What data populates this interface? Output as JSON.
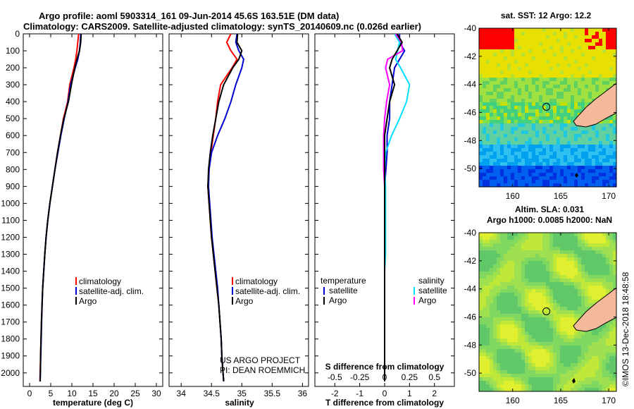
{
  "title_line1": "Argo profile: aoml 5903314_161 09-Jun-2014 45.6S 163.51E (DM data)",
  "title_line2": "Climatology: CARS2009. Satellite-adjusted climatology: synTS_20140609.nc (0.026d earlier)",
  "credit_line1": "US ARGO PROJECT",
  "credit_line2": "PI: DEAN ROEMMICH",
  "timestamp": "©IMOS 13-Dec-2018 18:48:58",
  "colors": {
    "climatology": "#ff0000",
    "satellite": "#0000d0",
    "argo": "#000000",
    "salinity_satellite": "#00e0ff",
    "salinity_argo": "#ff00ff",
    "land": "#f4b89a"
  },
  "depth_axis": {
    "ylim": [
      2080,
      0
    ],
    "ticks": [
      "0",
      "100",
      "200",
      "300",
      "400",
      "500",
      "600",
      "700",
      "800",
      "900",
      "1000",
      "1100",
      "1200",
      "1300",
      "1400",
      "1500",
      "1600",
      "1700",
      "1800",
      "1900",
      "2000"
    ]
  },
  "chart_data": [
    {
      "type": "line",
      "panel": "temperature",
      "xlabel": "temperature (deg C)",
      "xlim": [
        -1.5,
        31.5
      ],
      "xticks": [
        "0",
        "5",
        "10",
        "15",
        "20",
        "25",
        "30"
      ],
      "legend": [
        "climatology",
        "satellite-adj. clim.",
        "Argo"
      ],
      "depth": [
        0,
        50,
        100,
        150,
        200,
        300,
        400,
        500,
        600,
        700,
        800,
        900,
        1000,
        1100,
        1200,
        1300,
        1400,
        1500,
        1600,
        1700,
        1800,
        1900,
        2000,
        2050
      ],
      "series": [
        {
          "name": "climatology",
          "values": [
            11.6,
            11.4,
            11.2,
            10.9,
            10.5,
            9.5,
            9.0,
            8.0,
            7.3,
            6.6,
            6.0,
            5.4,
            4.8,
            4.3,
            3.9,
            3.6,
            3.35,
            3.1,
            2.95,
            2.8,
            2.7,
            2.6,
            2.5,
            2.45
          ]
        },
        {
          "name": "satellite-adj. clim.",
          "values": [
            12.1,
            12.0,
            11.8,
            11.4,
            10.8,
            9.7,
            9.1,
            8.2,
            7.4,
            6.7,
            6.0,
            5.4,
            4.8,
            4.3,
            3.9,
            3.6,
            3.35,
            3.1,
            2.95,
            2.85,
            2.75,
            2.65,
            2.55,
            2.5
          ]
        },
        {
          "name": "Argo",
          "values": [
            12.2,
            12.1,
            11.8,
            11.2,
            10.7,
            9.9,
            9.2,
            8.1,
            7.3,
            6.6,
            6.0,
            5.4,
            4.8,
            4.3,
            3.9,
            3.6,
            3.35,
            3.1,
            2.95,
            2.8,
            2.7,
            2.6,
            2.55,
            2.5
          ]
        }
      ]
    },
    {
      "type": "line",
      "panel": "salinity",
      "xlabel": "salinity",
      "xlim": [
        33.8,
        36.1
      ],
      "xticks": [
        "34",
        "34.5",
        "35",
        "35.5",
        "36"
      ],
      "legend": [
        "climatology",
        "satellite-adj. clim.",
        "Argo"
      ],
      "depth": [
        0,
        50,
        100,
        150,
        200,
        300,
        400,
        500,
        600,
        700,
        800,
        900,
        1000,
        1100,
        1200,
        1300,
        1400,
        1500,
        1600,
        1700,
        1800,
        1900,
        2000,
        2050
      ],
      "series": [
        {
          "name": "climatology",
          "values": [
            34.82,
            34.75,
            34.82,
            34.92,
            34.84,
            34.65,
            34.6,
            34.57,
            34.53,
            34.49,
            34.46,
            34.44,
            34.46,
            34.48,
            34.5,
            34.53,
            34.56,
            34.59,
            34.62,
            34.64,
            34.66,
            34.67,
            34.69,
            34.7
          ]
        },
        {
          "name": "satellite-adj. clim.",
          "values": [
            34.92,
            34.9,
            34.95,
            35.03,
            35.0,
            34.9,
            34.82,
            34.72,
            34.6,
            34.5,
            34.46,
            34.45,
            34.47,
            34.49,
            34.51,
            34.54,
            34.57,
            34.6,
            34.62,
            34.64,
            34.66,
            34.67,
            34.69,
            34.7
          ]
        },
        {
          "name": "Argo",
          "values": [
            34.93,
            34.92,
            35.0,
            34.95,
            34.85,
            34.7,
            34.62,
            34.57,
            34.52,
            34.48,
            34.45,
            34.44,
            34.46,
            34.48,
            34.5,
            34.53,
            34.56,
            34.59,
            34.62,
            34.64,
            34.66,
            34.67,
            34.69,
            34.7
          ]
        }
      ]
    },
    {
      "type": "line",
      "panel": "difference",
      "xlabel": "T difference from climatology",
      "xlabel_top": "S difference from climatology",
      "xlim": [
        -2.8,
        2.8
      ],
      "xticks": [
        "-2",
        "-1",
        "0",
        "1",
        "2"
      ],
      "xticks_top": [
        "-0.5",
        "-0.25",
        "0",
        "0.25",
        "0.5"
      ],
      "legend_left_title": "temperature",
      "legend_left": [
        "satellite",
        "Argo"
      ],
      "legend_right_title": "salinity",
      "legend_right": [
        "satellite",
        "Argo"
      ],
      "depth": [
        0,
        50,
        100,
        150,
        200,
        300,
        400,
        500,
        600,
        700,
        800,
        900,
        1000,
        1100,
        1200,
        1300,
        1400,
        1500,
        1600,
        1700,
        1800,
        1900,
        2000,
        2050
      ],
      "series": [
        {
          "name": "temperature satellite",
          "values": [
            0.6,
            0.6,
            0.8,
            0.6,
            0.4,
            0.3,
            0.2,
            0.2,
            0.1,
            0.1,
            0.05,
            0.0,
            0.0,
            0.0,
            0.0,
            0.0,
            0.0,
            0.0,
            0.0,
            0.0,
            0.0,
            0.0,
            0.0,
            0.0
          ]
        },
        {
          "name": "temperature Argo",
          "values": [
            0.5,
            0.7,
            0.5,
            0.3,
            0.2,
            0.4,
            0.2,
            0.1,
            0.0,
            0.0,
            0.0,
            0.0,
            0.0,
            0.0,
            0.0,
            0.0,
            0.0,
            0.0,
            0.0,
            0.0,
            0.0,
            0.0,
            0.0,
            0.0
          ]
        },
        {
          "name": "salinity satellite",
          "values": [
            0.1,
            0.15,
            0.13,
            0.11,
            0.16,
            0.25,
            0.22,
            0.15,
            0.07,
            0.01,
            0.0,
            0.01,
            0.01,
            0.01,
            0.01,
            0.01,
            0.0,
            0.0,
            0.0,
            0.0,
            0.0,
            0.0,
            0.0,
            0.0
          ]
        },
        {
          "name": "salinity Argo",
          "values": [
            0.11,
            0.17,
            0.18,
            0.03,
            0.01,
            0.05,
            0.02,
            0.0,
            -0.01,
            -0.01,
            -0.01,
            0.0,
            0.0,
            0.0,
            0.0,
            0.0,
            0.0,
            0.0,
            0.0,
            0.0,
            0.0,
            0.0,
            0.0,
            0.0
          ]
        }
      ]
    },
    {
      "type": "heatmap",
      "panel": "sst-map",
      "title": "sat. SST: 12 Argo: 12.2",
      "xlim": [
        156.5,
        170.8
      ],
      "ylim": [
        -51.3,
        -40
      ],
      "xticks": [
        "160",
        "165",
        "170"
      ],
      "yticks": [
        "-40",
        "-42",
        "-44",
        "-46",
        "-48",
        "-50"
      ],
      "argo_position": {
        "lon": 163.51,
        "lat": -45.6
      }
    },
    {
      "type": "heatmap",
      "panel": "sla-map",
      "title_line1": "Altim. SLA: 0.031",
      "title_line2": "Argo h1000: 0.0085 h2000: NaN",
      "xlim": [
        156.5,
        170.8
      ],
      "ylim": [
        -51.3,
        -40
      ],
      "xticks": [
        "160",
        "165",
        "170"
      ],
      "yticks": [
        "-40",
        "-42",
        "-44",
        "-46",
        "-48",
        "-50"
      ],
      "argo_position": {
        "lon": 163.51,
        "lat": -45.6
      }
    }
  ]
}
